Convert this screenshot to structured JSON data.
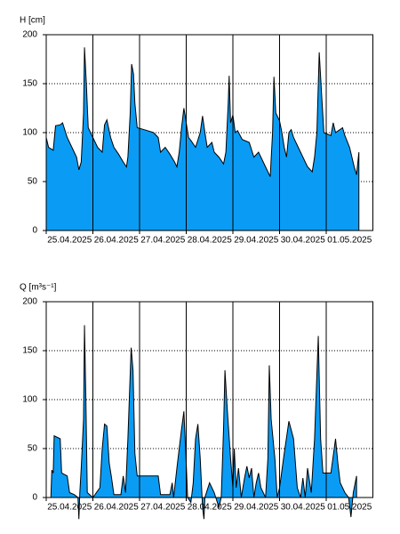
{
  "chart_data": [
    {
      "type": "area",
      "y_label": "H [cm]",
      "color": "#0a9cf5",
      "grid": true,
      "xlim": [
        0,
        7
      ],
      "ylim": [
        0,
        200
      ],
      "yticks": [
        0,
        50,
        100,
        150,
        200
      ],
      "xticks": [
        {
          "value": 0,
          "label": "25.04.2025"
        },
        {
          "value": 1,
          "label": "26.04.2025"
        },
        {
          "value": 2,
          "label": "27.04.2025"
        },
        {
          "value": 3,
          "label": "28.04.2025"
        },
        {
          "value": 4,
          "label": "29.04.2025"
        },
        {
          "value": 5,
          "label": "30.04.2025"
        },
        {
          "value": 6,
          "label": "01.05.2025"
        }
      ],
      "x": [
        0.0,
        0.05,
        0.15,
        0.2,
        0.3,
        0.35,
        0.45,
        0.55,
        0.65,
        0.7,
        0.75,
        0.8,
        0.82,
        0.86,
        0.9,
        1.0,
        1.1,
        1.2,
        1.25,
        1.3,
        1.38,
        1.45,
        1.55,
        1.65,
        1.72,
        1.75,
        1.8,
        1.83,
        1.87,
        1.9,
        1.95,
        2.1,
        2.3,
        2.4,
        2.45,
        2.55,
        2.65,
        2.75,
        2.8,
        2.85,
        2.9,
        2.95,
        3.0,
        3.05,
        3.1,
        3.2,
        3.3,
        3.35,
        3.4,
        3.45,
        3.55,
        3.6,
        3.7,
        3.8,
        3.85,
        3.9,
        3.92,
        3.95,
        4.0,
        4.05,
        4.1,
        4.2,
        4.35,
        4.45,
        4.55,
        4.65,
        4.75,
        4.8,
        4.85,
        4.88,
        4.92,
        5.0,
        5.05,
        5.1,
        5.15,
        5.2,
        5.25,
        5.3,
        5.45,
        5.6,
        5.7,
        5.75,
        5.8,
        5.85,
        5.9,
        5.95,
        6.1,
        6.15,
        6.2,
        6.35,
        6.4,
        6.5,
        6.6,
        6.65,
        6.7
      ],
      "values": [
        95,
        85,
        82,
        107,
        108,
        110,
        95,
        85,
        75,
        62,
        70,
        120,
        187,
        150,
        105,
        95,
        85,
        80,
        108,
        113,
        95,
        85,
        78,
        70,
        65,
        75,
        120,
        170,
        160,
        130,
        105,
        103,
        100,
        95,
        80,
        85,
        78,
        70,
        65,
        80,
        105,
        125,
        110,
        95,
        92,
        85,
        100,
        117,
        100,
        85,
        90,
        80,
        75,
        68,
        80,
        130,
        158,
        110,
        118,
        100,
        102,
        93,
        90,
        75,
        80,
        70,
        60,
        55,
        100,
        157,
        120,
        112,
        100,
        85,
        75,
        100,
        103,
        95,
        80,
        65,
        60,
        75,
        100,
        182,
        140,
        100,
        97,
        110,
        100,
        105,
        97,
        85,
        65,
        57,
        80
      ]
    },
    {
      "type": "area",
      "y_label": "Q [m³s⁻¹]",
      "color": "#0a9cf5",
      "grid": true,
      "xlim": [
        0,
        7
      ],
      "ylim": [
        0,
        200
      ],
      "yticks": [
        0,
        50,
        100,
        150,
        200
      ],
      "xticks": [
        {
          "value": 0,
          "label": "25.04.2025"
        },
        {
          "value": 1,
          "label": "26.04.2025"
        },
        {
          "value": 2,
          "label": "27.04.2025"
        },
        {
          "value": 3,
          "label": "28.04.2025"
        },
        {
          "value": 4,
          "label": "29.04.2025"
        },
        {
          "value": 5,
          "label": "30.04.2025"
        },
        {
          "value": 6,
          "label": "01.05.2025"
        }
      ],
      "x": [
        0.0,
        0.1,
        0.12,
        0.15,
        0.17,
        0.3,
        0.33,
        0.45,
        0.5,
        0.6,
        0.68,
        0.7,
        0.72,
        0.75,
        0.8,
        0.82,
        0.85,
        0.88,
        1.0,
        1.15,
        1.2,
        1.25,
        1.3,
        1.35,
        1.4,
        1.45,
        1.6,
        1.65,
        1.7,
        1.75,
        1.82,
        1.86,
        1.9,
        1.95,
        2.3,
        2.4,
        2.45,
        2.65,
        2.7,
        2.73,
        2.8,
        2.9,
        2.95,
        3.0,
        3.03,
        3.1,
        3.15,
        3.2,
        3.25,
        3.3,
        3.35,
        3.38,
        3.4,
        3.5,
        3.6,
        3.7,
        3.75,
        3.8,
        3.83,
        3.88,
        3.95,
        4.0,
        4.03,
        4.07,
        4.12,
        4.18,
        4.25,
        4.3,
        4.35,
        4.4,
        4.45,
        4.5,
        4.55,
        4.6,
        4.7,
        4.75,
        4.78,
        4.82,
        4.9,
        4.95,
        5.0,
        5.1,
        5.2,
        5.3,
        5.38,
        5.45,
        5.5,
        5.55,
        5.6,
        5.68,
        5.75,
        5.83,
        5.88,
        5.93,
        6.1,
        6.2,
        6.25,
        6.3,
        6.4,
        6.48,
        6.53,
        6.58,
        6.65
      ],
      "values": [
        0,
        0,
        28,
        25,
        63,
        60,
        25,
        22,
        5,
        3,
        0,
        -22,
        5,
        30,
        80,
        176,
        100,
        5,
        0,
        10,
        50,
        75,
        73,
        35,
        20,
        3,
        3,
        22,
        5,
        60,
        153,
        130,
        45,
        22,
        22,
        22,
        3,
        3,
        15,
        0,
        30,
        70,
        88,
        35,
        0,
        -5,
        15,
        60,
        75,
        40,
        -10,
        -22,
        0,
        15,
        5,
        -10,
        0,
        70,
        130,
        90,
        40,
        10,
        50,
        10,
        30,
        0,
        20,
        32,
        20,
        30,
        0,
        15,
        25,
        10,
        0,
        40,
        135,
        80,
        40,
        0,
        10,
        45,
        78,
        60,
        10,
        0,
        20,
        0,
        30,
        5,
        60,
        165,
        60,
        25,
        25,
        60,
        35,
        15,
        5,
        0,
        -20,
        5,
        22
      ]
    }
  ]
}
